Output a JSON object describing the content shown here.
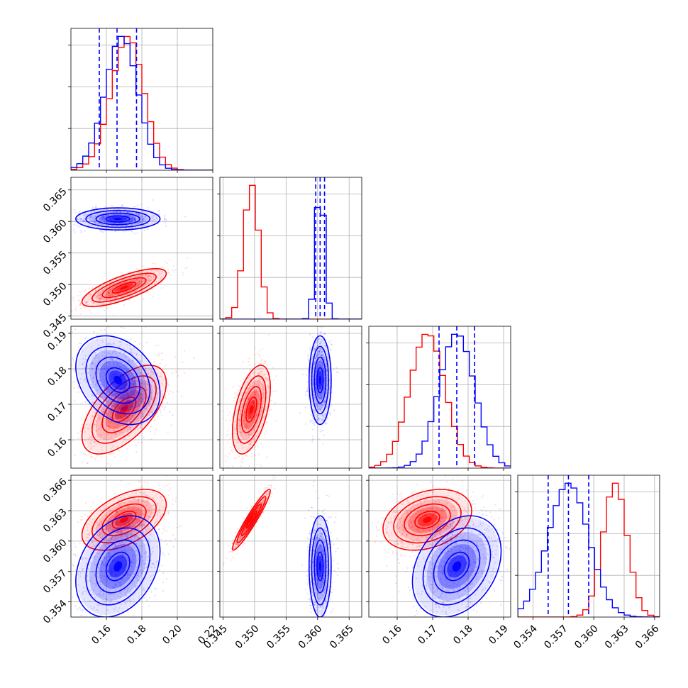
{
  "chart_data": {
    "type": "corner",
    "series": [
      {
        "name": "",
        "color": "#0000ff"
      },
      {
        "name": "",
        "color": "#ff0000"
      }
    ],
    "parameters": [
      {
        "range": [
          0.14,
          0.22
        ],
        "ticks": [
          0.16,
          0.18,
          0.2,
          0.22
        ],
        "tick_labels": [
          "0.16",
          "0.18",
          "0.20",
          "0.22"
        ]
      },
      {
        "range": [
          0.3445,
          0.367
        ],
        "ticks": [
          0.345,
          0.35,
          0.355,
          0.36,
          0.365
        ],
        "tick_labels": [
          "0.345",
          "0.350",
          "0.355",
          "0.360",
          "0.365"
        ]
      },
      {
        "range": [
          0.152,
          0.192
        ],
        "ticks": [
          0.16,
          0.17,
          0.18,
          0.19
        ],
        "tick_labels": [
          "0.16",
          "0.17",
          "0.18",
          "0.19"
        ]
      },
      {
        "range": [
          0.3525,
          0.3665
        ],
        "ticks": [
          0.354,
          0.357,
          0.36,
          0.363,
          0.366
        ],
        "tick_labels": [
          "0.354",
          "0.357",
          "0.360",
          "0.363",
          "0.366"
        ]
      }
    ],
    "quantiles": {
      "blue": [
        [
          0.156,
          0.166,
          0.177
        ],
        [
          0.3597,
          0.3604,
          0.3611
        ],
        [
          0.1718,
          0.1768,
          0.1818
        ],
        [
          0.3555,
          0.3575,
          0.3595
        ]
      ]
    },
    "summaries": {
      "blue": [
        {
          "mean": 0.1665,
          "sd": 0.0095,
          "skew": 1.2
        },
        {
          "mean": 0.3604,
          "sd": 0.0007,
          "skew": 0
        },
        {
          "mean": 0.1768,
          "sd": 0.005,
          "skew": 0
        },
        {
          "mean": 0.3575,
          "sd": 0.002,
          "skew": 0
        }
      ],
      "red": [
        {
          "mean": 0.17,
          "sd": 0.0095,
          "skew": 1.2
        },
        {
          "mean": 0.3495,
          "sd": 0.0012,
          "skew": 0
        },
        {
          "mean": 0.1685,
          "sd": 0.005,
          "skew": 0
        },
        {
          "mean": 0.3621,
          "sd": 0.0012,
          "skew": 0
        }
      ]
    },
    "correlations": {
      "blue": {
        "1-0": 0.0,
        "2-0": -0.3,
        "2-1": 0.0,
        "3-0": 0.3,
        "3-1": 0.0,
        "3-2": 0.3
      },
      "red": {
        "1-0": 0.75,
        "2-0": 0.6,
        "2-1": 0.5,
        "3-0": 0.5,
        "3-1": 0.95,
        "3-2": 0.3
      }
    }
  }
}
